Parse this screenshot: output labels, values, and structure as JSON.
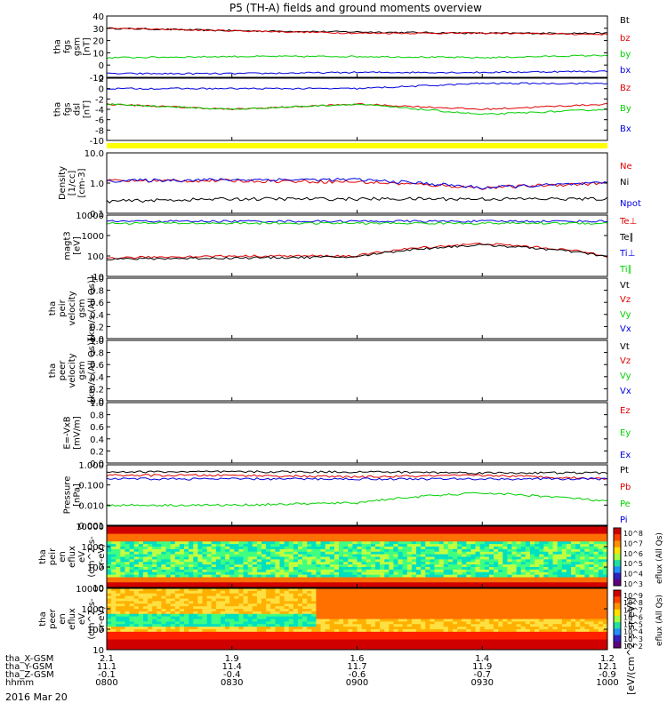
{
  "title": "P5 (TH-A) fields and ground moments overview",
  "date": "2016 Mar 20",
  "colors": {
    "black": "#000000",
    "red": "#e00000",
    "green": "#00d000",
    "blue": "#0000e0",
    "yellow": "#ffff00"
  },
  "ephemeris": {
    "rows": [
      {
        "label": "tha_X-GSM",
        "values": [
          "2.1",
          "1.9",
          "1.6",
          "1.4",
          "1.2"
        ]
      },
      {
        "label": "tha_Y-GSM",
        "values": [
          "11.1",
          "11.4",
          "11.7",
          "11.9",
          "12.1"
        ]
      },
      {
        "label": "tha_Z-GSM",
        "values": [
          "-0.1",
          "-0.4",
          "-0.6",
          "-0.7",
          "-0.9"
        ]
      },
      {
        "label": "hhmm",
        "values": [
          "0800",
          "0830",
          "0900",
          "0930",
          "1000"
        ]
      }
    ]
  },
  "colorbar_label": "[eV/(cm^2-s-sr-eV)]",
  "chart_data": [
    {
      "type": "line",
      "id": "fgs_gsm",
      "ylabel": [
        "tha",
        "fgs",
        "gsm",
        "[nT]"
      ],
      "ylim": [
        -10,
        40
      ],
      "yticks": [
        "40",
        "30",
        "20",
        "10",
        "0",
        "-10"
      ],
      "x": [
        "0800",
        "0830",
        "0900",
        "0930",
        "1000"
      ],
      "series": [
        {
          "name": "Bt",
          "color": "black",
          "values": [
            30,
            28,
            27,
            26,
            26
          ]
        },
        {
          "name": "bz",
          "color": "red",
          "values": [
            30,
            28,
            26,
            26,
            25
          ]
        },
        {
          "name": "by",
          "color": "green",
          "values": [
            6,
            7,
            7,
            6,
            8
          ]
        },
        {
          "name": "bx",
          "color": "blue",
          "values": [
            -7,
            -7,
            -6,
            -6,
            -5
          ]
        }
      ]
    },
    {
      "type": "line",
      "id": "fgs_dsl",
      "ylabel": [
        "tha",
        "fgs",
        "dsl",
        "[nT]"
      ],
      "ylim": [
        -10,
        2
      ],
      "yticks": [
        "2",
        "0",
        "-2",
        "-4",
        "-6",
        "-8",
        "-10"
      ],
      "x": [
        "0800",
        "0830",
        "0900",
        "0930",
        "1000"
      ],
      "series": [
        {
          "name": "Bz",
          "color": "red",
          "values": [
            -3,
            -4,
            -3,
            -4,
            -3
          ]
        },
        {
          "name": "By",
          "color": "green",
          "values": [
            -3,
            -4,
            -3,
            -5,
            -4
          ]
        },
        {
          "name": "Bx",
          "color": "blue",
          "values": [
            0,
            0,
            0,
            1,
            1
          ]
        }
      ]
    },
    {
      "type": "line",
      "id": "density",
      "ylabel": [
        "Density",
        "[1/cc]",
        "[cm-3]"
      ],
      "scale": "log",
      "ylim": [
        0.1,
        10
      ],
      "yticks": [
        "10.0",
        "1.0",
        "0.1"
      ],
      "x": [
        "0800",
        "0830",
        "0900",
        "0930",
        "1000"
      ],
      "series": [
        {
          "name": "Ne",
          "color": "red",
          "values": [
            1.2,
            1.2,
            1.1,
            0.7,
            1.0
          ]
        },
        {
          "name": "Ni",
          "color": "black",
          "values": [
            0.25,
            0.3,
            0.3,
            0.3,
            0.3
          ]
        },
        {
          "name": "Npot",
          "color": "blue",
          "values": [
            1.2,
            1.3,
            1.3,
            0.7,
            1.0
          ]
        }
      ]
    },
    {
      "type": "line",
      "id": "temperature",
      "ylabel": [
        "magt3",
        "[eV]"
      ],
      "scale": "log",
      "ylim": [
        10,
        10000
      ],
      "yticks": [
        "10000",
        "1000",
        "100",
        "10"
      ],
      "x": [
        "0800",
        "0830",
        "0900",
        "0930",
        "1000"
      ],
      "series": [
        {
          "name": "Te⊥",
          "color": "red",
          "values": [
            80,
            100,
            100,
            400,
            100
          ]
        },
        {
          "name": "Te∥",
          "color": "black",
          "values": [
            70,
            80,
            90,
            350,
            90
          ]
        },
        {
          "name": "Ti⊥",
          "color": "blue",
          "values": [
            5000,
            5000,
            5000,
            5000,
            5000
          ]
        },
        {
          "name": "Ti∥",
          "color": "green",
          "values": [
            4000,
            4000,
            4000,
            4000,
            4000
          ]
        }
      ]
    },
    {
      "type": "line",
      "id": "peir_velocity",
      "ylabel": [
        "tha",
        "peir",
        "velocity",
        "gsm",
        "[km/s (All Qs)]"
      ],
      "ylim": [
        0,
        1
      ],
      "yticks": [
        "1.0",
        "0.8",
        "0.6",
        "0.4",
        "0.2",
        "0.0"
      ],
      "series": [
        {
          "name": "Vt",
          "color": "black"
        },
        {
          "name": "Vz",
          "color": "red"
        },
        {
          "name": "Vy",
          "color": "green"
        },
        {
          "name": "Vx",
          "color": "blue"
        }
      ]
    },
    {
      "type": "line",
      "id": "peer_velocity",
      "ylabel": [
        "tha",
        "peer",
        "velocity",
        "gsm",
        "[km/s (All Qs)]"
      ],
      "ylim": [
        0,
        1
      ],
      "yticks": [
        "1.0",
        "0.8",
        "0.6",
        "0.4",
        "0.2",
        "0.0"
      ],
      "series": [
        {
          "name": "Vt",
          "color": "black"
        },
        {
          "name": "Vz",
          "color": "red"
        },
        {
          "name": "Vy",
          "color": "green"
        },
        {
          "name": "Vx",
          "color": "blue"
        }
      ]
    },
    {
      "type": "line",
      "id": "efield",
      "ylabel": [
        "E=-VxB",
        "[mV/m]"
      ],
      "ylim": [
        0,
        1
      ],
      "yticks": [
        "1.0",
        "0.8",
        "0.6",
        "0.4",
        "0.2",
        "0.0"
      ],
      "series": [
        {
          "name": "Ez",
          "color": "red"
        },
        {
          "name": "Ey",
          "color": "green"
        },
        {
          "name": "Ex",
          "color": "blue"
        }
      ]
    },
    {
      "type": "line",
      "id": "pressure",
      "ylabel": [
        "Pressure",
        "[nPa]"
      ],
      "scale": "log",
      "ylim": [
        0.001,
        1
      ],
      "yticks": [
        "1.000",
        "0.100",
        "0.010",
        "0.001"
      ],
      "x": [
        "0800",
        "0830",
        "0900",
        "0930",
        "1000"
      ],
      "series": [
        {
          "name": "Pt",
          "color": "black",
          "values": [
            0.45,
            0.45,
            0.45,
            0.4,
            0.4
          ]
        },
        {
          "name": "Pb",
          "color": "red",
          "values": [
            0.3,
            0.3,
            0.25,
            0.3,
            0.2
          ]
        },
        {
          "name": "Pe",
          "color": "green",
          "values": [
            0.01,
            0.01,
            0.013,
            0.04,
            0.015
          ]
        },
        {
          "name": "Pi",
          "color": "blue",
          "values": [
            0.2,
            0.2,
            0.2,
            0.2,
            0.2
          ]
        }
      ]
    },
    {
      "type": "heatmap",
      "id": "peir_eflux",
      "ylabel": [
        "tha",
        "peir",
        "en",
        "eflux",
        "eV",
        "(cm^2-s-",
        "sr-eV)"
      ],
      "scale": "log",
      "ylim": [
        5,
        30000
      ],
      "yticks": [
        "10000",
        "1000",
        "100",
        "10"
      ],
      "colorbar_ticks": [
        "10^8",
        "10^7",
        "10^6",
        "10^5",
        "10^4",
        "10^3"
      ],
      "colorbar_label": "eflux (All Qs)"
    },
    {
      "type": "heatmap",
      "id": "peer_eflux",
      "ylabel": [
        "tha",
        "peer",
        "en",
        "eflux",
        "eV",
        "(cm^2-s-",
        "sr-eV)"
      ],
      "scale": "log",
      "ylim": [
        5,
        30000
      ],
      "yticks": [
        "10000",
        "1000",
        "100",
        "10"
      ],
      "colorbar_ticks": [
        "10^9",
        "10^8",
        "10^7",
        "10^6",
        "10^5",
        "10^4",
        "10^3",
        "10^2"
      ],
      "colorbar_label": "eflux (All Qs)"
    }
  ]
}
